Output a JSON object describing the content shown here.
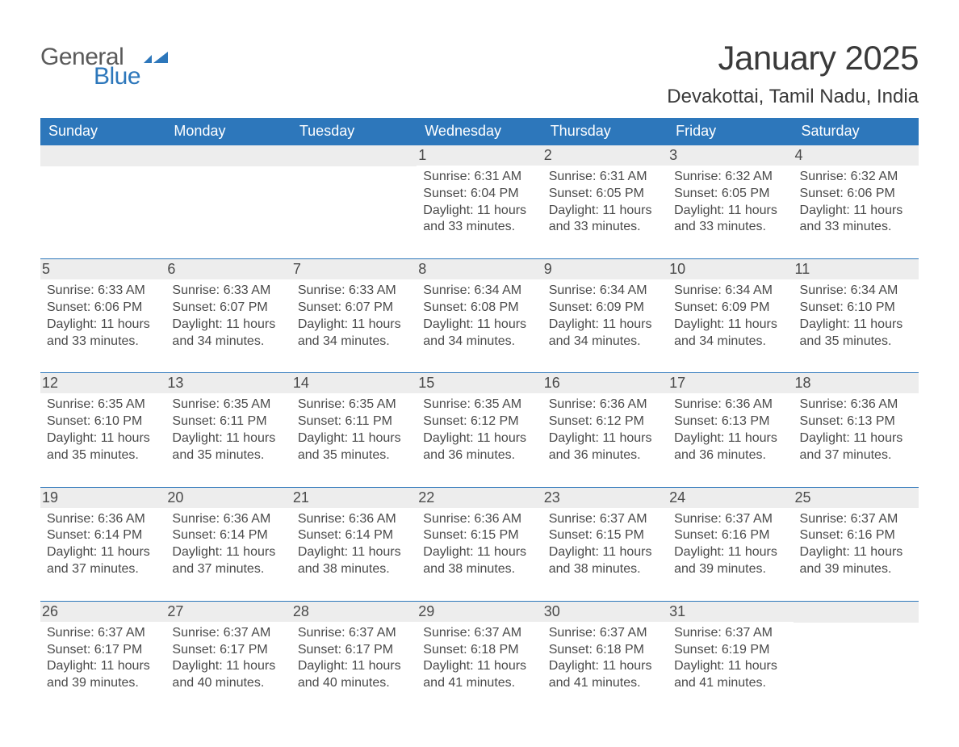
{
  "brand": {
    "main": "General",
    "sub": "Blue"
  },
  "title": {
    "month": "January 2025",
    "location": "Devakottai, Tamil Nadu, India"
  },
  "colors": {
    "header_bg": "#2d77bb",
    "header_text": "#ffffff",
    "daynum_bg": "#ededed",
    "row_divider": "#2d77bb",
    "body_text": "#4a4a4a",
    "page_bg": "#ffffff"
  },
  "weekdays": [
    "Sunday",
    "Monday",
    "Tuesday",
    "Wednesday",
    "Thursday",
    "Friday",
    "Saturday"
  ],
  "weeks": [
    [
      null,
      null,
      null,
      {
        "n": "1",
        "sunrise": "6:31 AM",
        "sunset": "6:04 PM",
        "daylight": "11 hours and 33 minutes."
      },
      {
        "n": "2",
        "sunrise": "6:31 AM",
        "sunset": "6:05 PM",
        "daylight": "11 hours and 33 minutes."
      },
      {
        "n": "3",
        "sunrise": "6:32 AM",
        "sunset": "6:05 PM",
        "daylight": "11 hours and 33 minutes."
      },
      {
        "n": "4",
        "sunrise": "6:32 AM",
        "sunset": "6:06 PM",
        "daylight": "11 hours and 33 minutes."
      }
    ],
    [
      {
        "n": "5",
        "sunrise": "6:33 AM",
        "sunset": "6:06 PM",
        "daylight": "11 hours and 33 minutes."
      },
      {
        "n": "6",
        "sunrise": "6:33 AM",
        "sunset": "6:07 PM",
        "daylight": "11 hours and 34 minutes."
      },
      {
        "n": "7",
        "sunrise": "6:33 AM",
        "sunset": "6:07 PM",
        "daylight": "11 hours and 34 minutes."
      },
      {
        "n": "8",
        "sunrise": "6:34 AM",
        "sunset": "6:08 PM",
        "daylight": "11 hours and 34 minutes."
      },
      {
        "n": "9",
        "sunrise": "6:34 AM",
        "sunset": "6:09 PM",
        "daylight": "11 hours and 34 minutes."
      },
      {
        "n": "10",
        "sunrise": "6:34 AM",
        "sunset": "6:09 PM",
        "daylight": "11 hours and 34 minutes."
      },
      {
        "n": "11",
        "sunrise": "6:34 AM",
        "sunset": "6:10 PM",
        "daylight": "11 hours and 35 minutes."
      }
    ],
    [
      {
        "n": "12",
        "sunrise": "6:35 AM",
        "sunset": "6:10 PM",
        "daylight": "11 hours and 35 minutes."
      },
      {
        "n": "13",
        "sunrise": "6:35 AM",
        "sunset": "6:11 PM",
        "daylight": "11 hours and 35 minutes."
      },
      {
        "n": "14",
        "sunrise": "6:35 AM",
        "sunset": "6:11 PM",
        "daylight": "11 hours and 35 minutes."
      },
      {
        "n": "15",
        "sunrise": "6:35 AM",
        "sunset": "6:12 PM",
        "daylight": "11 hours and 36 minutes."
      },
      {
        "n": "16",
        "sunrise": "6:36 AM",
        "sunset": "6:12 PM",
        "daylight": "11 hours and 36 minutes."
      },
      {
        "n": "17",
        "sunrise": "6:36 AM",
        "sunset": "6:13 PM",
        "daylight": "11 hours and 36 minutes."
      },
      {
        "n": "18",
        "sunrise": "6:36 AM",
        "sunset": "6:13 PM",
        "daylight": "11 hours and 37 minutes."
      }
    ],
    [
      {
        "n": "19",
        "sunrise": "6:36 AM",
        "sunset": "6:14 PM",
        "daylight": "11 hours and 37 minutes."
      },
      {
        "n": "20",
        "sunrise": "6:36 AM",
        "sunset": "6:14 PM",
        "daylight": "11 hours and 37 minutes."
      },
      {
        "n": "21",
        "sunrise": "6:36 AM",
        "sunset": "6:14 PM",
        "daylight": "11 hours and 38 minutes."
      },
      {
        "n": "22",
        "sunrise": "6:36 AM",
        "sunset": "6:15 PM",
        "daylight": "11 hours and 38 minutes."
      },
      {
        "n": "23",
        "sunrise": "6:37 AM",
        "sunset": "6:15 PM",
        "daylight": "11 hours and 38 minutes."
      },
      {
        "n": "24",
        "sunrise": "6:37 AM",
        "sunset": "6:16 PM",
        "daylight": "11 hours and 39 minutes."
      },
      {
        "n": "25",
        "sunrise": "6:37 AM",
        "sunset": "6:16 PM",
        "daylight": "11 hours and 39 minutes."
      }
    ],
    [
      {
        "n": "26",
        "sunrise": "6:37 AM",
        "sunset": "6:17 PM",
        "daylight": "11 hours and 39 minutes."
      },
      {
        "n": "27",
        "sunrise": "6:37 AM",
        "sunset": "6:17 PM",
        "daylight": "11 hours and 40 minutes."
      },
      {
        "n": "28",
        "sunrise": "6:37 AM",
        "sunset": "6:17 PM",
        "daylight": "11 hours and 40 minutes."
      },
      {
        "n": "29",
        "sunrise": "6:37 AM",
        "sunset": "6:18 PM",
        "daylight": "11 hours and 41 minutes."
      },
      {
        "n": "30",
        "sunrise": "6:37 AM",
        "sunset": "6:18 PM",
        "daylight": "11 hours and 41 minutes."
      },
      {
        "n": "31",
        "sunrise": "6:37 AM",
        "sunset": "6:19 PM",
        "daylight": "11 hours and 41 minutes."
      },
      null
    ]
  ],
  "labels": {
    "sunrise": "Sunrise:",
    "sunset": "Sunset:",
    "daylight": "Daylight:"
  }
}
